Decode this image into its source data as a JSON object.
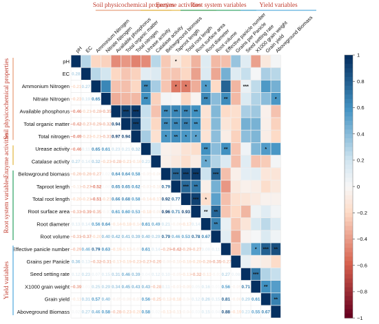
{
  "chart_data": {
    "type": "heatmap",
    "variables": [
      "pH",
      "EC",
      "Ammonium Nitrogen",
      "Nitrate Nitrogen",
      "Available phosphorus",
      "Total organic matter",
      "Total nitrogen",
      "Urease activity",
      "Catalase activity",
      "Belowground biomass",
      "Taproot length",
      "Total root length",
      "Root surface area",
      "Root diameter",
      "Root volume",
      "Effective panicle number",
      "Grains per Panicle",
      "Seed setting rate",
      "X1000 grain weight",
      "Grain yield",
      "Aboveground Biomass"
    ],
    "column_labels": [
      "pH",
      "EC",
      "Ammonium Nitrogen",
      "Nitrate Nitrogen",
      "Available phosphorus",
      "Total organic matter",
      "Total nitrogen",
      "Urease activity",
      "Catalase activity",
      "Belowground biomass",
      "Taproot length",
      "Total root length",
      "Root surface area",
      "Root diameter",
      "Root volume",
      "Effective panicle number",
      "Grains per Panicle",
      "Seed setting rate",
      "X1000 grain weight",
      "Grain yield",
      "Aboveground Biomass"
    ],
    "groups": [
      {
        "name": "Soil physicochemical properties",
        "start": 0,
        "end": 6,
        "color": "#e8a07e"
      },
      {
        "name": "Enzyme activities",
        "start": 7,
        "end": 8,
        "color": "#e3b94a"
      },
      {
        "name": "Root system variables",
        "start": 9,
        "end": 14,
        "color": "#3aa76d"
      },
      {
        "name": "Yield variables",
        "start": 15,
        "end": 20,
        "color": "#5aaede"
      }
    ],
    "lower": [
      [],
      [
        0.28
      ],
      [
        -0.21,
        0.27
      ],
      [
        -0.23,
        0.19,
        0.65
      ],
      [
        -0.46,
        -0.21,
        -0.28,
        -0.35
      ],
      [
        -0.42,
        -0.27,
        -0.29,
        -0.32,
        0.94
      ],
      [
        -0.49,
        -0.23,
        -0.21,
        -0.31,
        0.97,
        0.94
      ],
      [
        -0.46,
        0.11,
        0.65,
        0.61,
        0.23,
        0.21,
        0.32
      ],
      [
        0.27,
        0.14,
        0.32,
        -0.23,
        -0.28,
        -0.21,
        -0.16,
        0.23
      ],
      [
        -0.26,
        -0.26,
        -0.27,
        0.02,
        0.64,
        0.64,
        0.58,
        -0.05,
        -0.06
      ],
      [
        -0.11,
        -0.27,
        -0.52,
        0.0,
        0.65,
        0.65,
        0.62,
        -0.07,
        -0.1,
        0.79
      ],
      [
        -0.2,
        -0.21,
        -0.51,
        -0.21,
        0.66,
        0.68,
        0.58,
        -0.14,
        -0.17,
        0.92,
        0.77
      ],
      [
        -0.33,
        -0.39,
        -0.35,
        -0.03,
        0.61,
        0.6,
        0.53,
        -0.18,
        -0.08,
        0.96,
        0.71,
        0.93
      ],
      [
        0.13,
        0.14,
        0.56,
        0.64,
        -0.14,
        -0.18,
        -0.14,
        0.61,
        0.49,
        0.21,
        -0.06,
        -0.17,
        0.14
      ],
      [
        -0.31,
        -0.37,
        -0.2,
        0.4,
        0.42,
        0.41,
        0.39,
        0.4,
        0.29,
        0.79,
        0.46,
        0.53,
        0.78,
        0.67
      ],
      [
        -0.29,
        0.46,
        0.79,
        0.63,
        -0.19,
        -0.13,
        -0.07,
        0.61,
        0.14,
        -0.29,
        -0.42,
        -0.29,
        -0.27,
        0.08,
        0.11
      ],
      [
        0.36,
        0.13,
        -0.32,
        -0.31,
        -0.17,
        -0.19,
        -0.23,
        -0.27,
        -0.29,
        -0.06,
        -0.1,
        -0.16,
        -0.2,
        -0.26,
        -0.35,
        -0.27
      ],
      [
        0.12,
        0.23,
        0.07,
        0.15,
        0.31,
        0.46,
        0.39,
        0.04,
        0.12,
        0.1,
        -0.05,
        -0.13,
        -0.32,
        -0.13,
        -0.03,
        0.27,
        0.08
      ],
      [
        -0.39,
        0.01,
        0.25,
        0.29,
        0.34,
        0.45,
        0.43,
        0.43,
        -0.28,
        0.11,
        -0.07,
        -0.09,
        0.05,
        0.16,
        0.01,
        0.56,
        -0.05,
        0.71
      ],
      [
        -0.11,
        0.31,
        0.57,
        0.4,
        -0.05,
        -0.06,
        -0.07,
        0.56,
        -0.25,
        -0.12,
        -0.18,
        -0.04,
        0.12,
        0.26,
        0.15,
        0.81,
        -0.08,
        0.29,
        0.61
      ],
      [
        0.02,
        0.27,
        0.46,
        0.58,
        -0.28,
        -0.23,
        -0.2,
        0.58,
        0.02,
        -0.13,
        -0.11,
        -0.04,
        0.03,
        0.15,
        0.04,
        0.88,
        -0.19,
        0.23,
        0.55,
        0.67
      ]
    ],
    "upper_stars": {
      "0-10": "*",
      "2-10": "*",
      "2-11": "*",
      "2-13": "*",
      "2-17": "***",
      "2-22": "*",
      "2-7": "**",
      "3-7": "**",
      "3-13": "**",
      "3-15": "**",
      "3-20": "*",
      "4-5": "***",
      "4-6": "***",
      "4-9": "**",
      "4-10": "**",
      "4-11": "**",
      "4-12": "**",
      "5-6": "***",
      "5-9": "**",
      "5-10": "**",
      "5-11": "**",
      "5-12": "**",
      "6-9": "*",
      "6-10": "**",
      "6-11": "*",
      "6-12": "*",
      "7-13": "**",
      "7-15": "**",
      "7-19": "*",
      "8-13": "*",
      "9-10": "***",
      "9-11": "***",
      "9-12": "***",
      "9-14": "***",
      "10-11": "***",
      "10-12": "**",
      "11-12": "***",
      "11-13": "*",
      "12-13": "**",
      "12-14": "**",
      "13-14": "**",
      "15-18": "*",
      "15-19": "***",
      "15-20": "**",
      "17-18": "***",
      "18-19": "**",
      "19-20": "**"
    },
    "colorbar": {
      "min": -1,
      "max": 1,
      "ticks": [
        "1",
        "0.8",
        "0.6",
        "0.4",
        "0.2",
        "0",
        "−0.2",
        "−0.4",
        "−0.6",
        "−0.8",
        "−1"
      ]
    }
  }
}
